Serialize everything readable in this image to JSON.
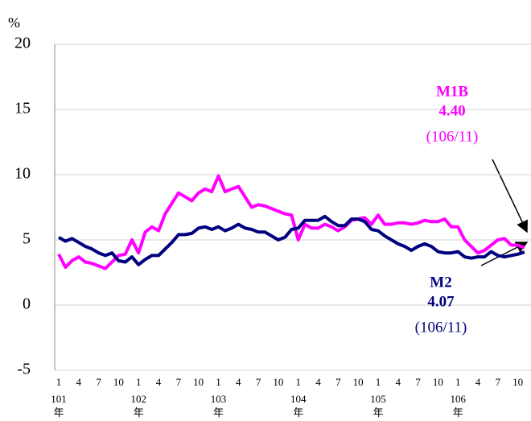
{
  "chart_data": {
    "type": "line",
    "y_unit": "%",
    "ylim": [
      -5,
      20
    ],
    "yticks": [
      -5,
      0,
      5,
      10,
      15,
      20
    ],
    "grid": true,
    "categories": [
      "1",
      null,
      null,
      "4",
      null,
      null,
      "7",
      null,
      null,
      "10",
      null,
      null,
      "1",
      null,
      null,
      "4",
      null,
      null,
      "7",
      null,
      null,
      "10",
      null,
      null,
      "1",
      null,
      null,
      "4",
      null,
      null,
      "7",
      null,
      null,
      "10",
      null,
      null,
      "1",
      null,
      null,
      "4",
      null,
      null,
      "7",
      null,
      null,
      "10",
      null,
      null,
      "1",
      null,
      null,
      "4",
      null,
      null,
      "7",
      null,
      null,
      "10",
      null,
      null,
      "1",
      null,
      null,
      "4",
      null,
      null,
      "7",
      null,
      null,
      "10",
      null
    ],
    "year_labels": [
      "101",
      "102",
      "103",
      "104",
      "105",
      "106"
    ],
    "year_unit": "年",
    "series": [
      {
        "name": "M1B",
        "color": "#ff00ff",
        "values": [
          3.9,
          2.9,
          3.4,
          3.7,
          3.3,
          3.2,
          3.0,
          2.8,
          3.3,
          3.8,
          3.9,
          5.0,
          4.0,
          5.6,
          6.0,
          5.7,
          7.0,
          7.8,
          8.6,
          8.3,
          8.0,
          8.6,
          8.9,
          8.7,
          9.9,
          8.7,
          8.9,
          9.1,
          8.3,
          7.5,
          7.7,
          7.6,
          7.4,
          7.2,
          7.0,
          6.9,
          5.0,
          6.2,
          5.9,
          5.9,
          6.2,
          6.0,
          5.7,
          6.0,
          6.5,
          6.6,
          6.7,
          6.2,
          6.9,
          6.2,
          6.2,
          6.3,
          6.3,
          6.2,
          6.3,
          6.5,
          6.4,
          6.4,
          6.6,
          6.0,
          6.0,
          5.0,
          4.5,
          4.0,
          4.2,
          4.6,
          5.0,
          5.1,
          4.6,
          4.6,
          4.4
        ]
      },
      {
        "name": "M2",
        "color": "#000080",
        "values": [
          5.2,
          4.9,
          5.1,
          4.8,
          4.5,
          4.3,
          4.0,
          3.8,
          4.0,
          3.4,
          3.3,
          3.7,
          3.1,
          3.5,
          3.8,
          3.8,
          4.3,
          4.8,
          5.4,
          5.4,
          5.5,
          5.9,
          6.0,
          5.8,
          6.0,
          5.7,
          5.9,
          6.2,
          5.9,
          5.8,
          5.6,
          5.6,
          5.3,
          5.0,
          5.2,
          5.8,
          5.9,
          6.5,
          6.5,
          6.5,
          6.8,
          6.4,
          6.1,
          6.1,
          6.6,
          6.6,
          6.4,
          5.8,
          5.7,
          5.3,
          5.0,
          4.7,
          4.5,
          4.2,
          4.5,
          4.7,
          4.5,
          4.1,
          4.0,
          4.0,
          4.1,
          3.7,
          3.6,
          3.7,
          3.7,
          4.1,
          3.8,
          3.7,
          3.8,
          3.9,
          4.07
        ]
      }
    ],
    "annotations": [
      {
        "series": "M1B",
        "value": "4.40",
        "date": "(106/11)"
      },
      {
        "series": "M2",
        "value": "4.07",
        "date": "(106/11)"
      }
    ]
  }
}
